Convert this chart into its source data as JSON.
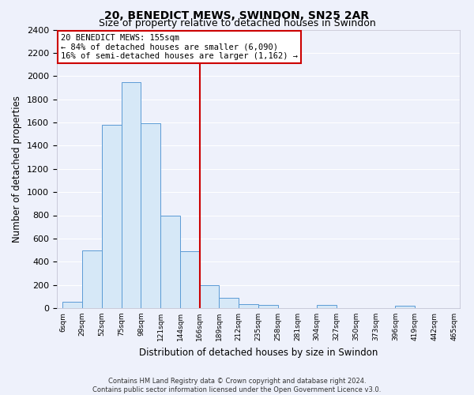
{
  "title": "20, BENEDICT MEWS, SWINDON, SN25 2AR",
  "subtitle": "Size of property relative to detached houses in Swindon",
  "xlabel": "Distribution of detached houses by size in Swindon",
  "ylabel": "Number of detached properties",
  "footnote1": "Contains HM Land Registry data © Crown copyright and database right 2024.",
  "footnote2": "Contains public sector information licensed under the Open Government Licence v3.0.",
  "annotation_line1": "20 BENEDICT MEWS: 155sqm",
  "annotation_line2": "← 84% of detached houses are smaller (6,090)",
  "annotation_line3": "16% of semi-detached houses are larger (1,162) →",
  "bar_heights": [
    55,
    500,
    1580,
    1950,
    1590,
    800,
    490,
    200,
    90,
    35,
    30,
    0,
    0,
    25,
    0,
    0,
    0,
    20,
    0,
    0
  ],
  "tick_labels": [
    "6sqm",
    "29sqm",
    "52sqm",
    "75sqm",
    "98sqm",
    "121sqm",
    "144sqm",
    "166sqm",
    "189sqm",
    "212sqm",
    "235sqm",
    "258sqm",
    "281sqm",
    "304sqm",
    "327sqm",
    "350sqm",
    "373sqm",
    "396sqm",
    "419sqm",
    "442sqm",
    "465sqm"
  ],
  "property_line_bar_index": 7,
  "bar_color": "#d6e8f7",
  "bar_edge_color": "#5b9bd5",
  "ylim": [
    0,
    2400
  ],
  "yticks": [
    0,
    200,
    400,
    600,
    800,
    1000,
    1200,
    1400,
    1600,
    1800,
    2000,
    2200,
    2400
  ],
  "bg_color": "#eef1fb",
  "grid_color": "#ffffff",
  "annotation_box_color": "#ffffff",
  "annotation_box_edge": "#cc0000",
  "red_line_color": "#cc0000",
  "title_fontsize": 10,
  "subtitle_fontsize": 9
}
